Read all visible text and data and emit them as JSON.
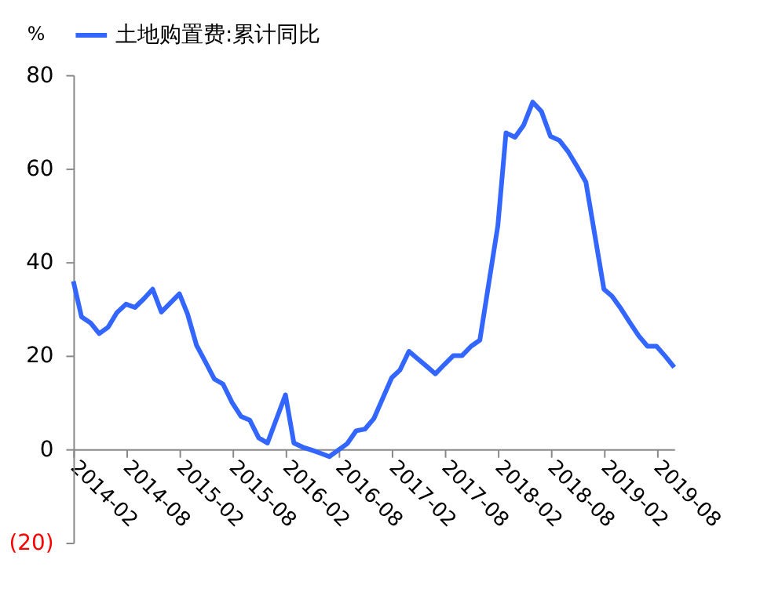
{
  "chart_data": {
    "type": "line",
    "ylabel": "%",
    "x": [
      "2014-02",
      "2014-03",
      "2014-04",
      "2014-05",
      "2014-06",
      "2014-07",
      "2014-08",
      "2014-09",
      "2014-10",
      "2014-11",
      "2014-12",
      "2015-02",
      "2015-03",
      "2015-04",
      "2015-05",
      "2015-06",
      "2015-07",
      "2015-08",
      "2015-09",
      "2015-10",
      "2015-11",
      "2015-12",
      "2016-02",
      "2016-03",
      "2016-04",
      "2016-05",
      "2016-06",
      "2016-07",
      "2016-08",
      "2016-09",
      "2016-10",
      "2016-11",
      "2016-12",
      "2017-02",
      "2017-03",
      "2017-04",
      "2017-05",
      "2017-06",
      "2017-07",
      "2017-08",
      "2017-09",
      "2017-10",
      "2017-11",
      "2017-12",
      "2018-02",
      "2018-03",
      "2018-04",
      "2018-05",
      "2018-06",
      "2018-07",
      "2018-08",
      "2018-09",
      "2018-10",
      "2018-11",
      "2018-12",
      "2019-02",
      "2019-03",
      "2019-04",
      "2019-05",
      "2019-06",
      "2019-07",
      "2019-08",
      "2019-09",
      "2019-10"
    ],
    "series": [
      {
        "name": "土地购置费:累计同比",
        "color": "#3366ff",
        "values": [
          35.9,
          28.3,
          27,
          24.7,
          26.1,
          29.2,
          31,
          30.3,
          32.1,
          34.2,
          29.3,
          33.2,
          28.9,
          22.2,
          18.7,
          15,
          13.9,
          10,
          7,
          6.2,
          2.4,
          1.3,
          11.6,
          1.3,
          0.4,
          -0.2,
          -0.9,
          -1.6,
          -0.2,
          1.2,
          3.9,
          4.3,
          6.5,
          15.3,
          16.9,
          20.9,
          19.3,
          17.7,
          16.1,
          18.1,
          20,
          20,
          22,
          23.3,
          47.8,
          67.6,
          66.7,
          69.3,
          74.2,
          72.2,
          66.9,
          66,
          63.6,
          60.4,
          57.1,
          34.2,
          32.7,
          30,
          27.1,
          24.2,
          22,
          22,
          19.8,
          17.5
        ]
      }
    ],
    "xlim": [
      "2014-02",
      "2019-10"
    ],
    "xticks": [
      "2014-02",
      "2014-08",
      "2015-02",
      "2015-08",
      "2016-02",
      "2016-08",
      "2017-02",
      "2017-08",
      "2018-02",
      "2018-08",
      "2019-02",
      "2019-08"
    ],
    "ylim": [
      -20,
      80
    ],
    "yticks": [
      {
        "value": -20,
        "label": "(20)"
      },
      0,
      20,
      40,
      60,
      80
    ],
    "grid": false,
    "legend": "top",
    "marker": "none",
    "line_style": "solid"
  }
}
